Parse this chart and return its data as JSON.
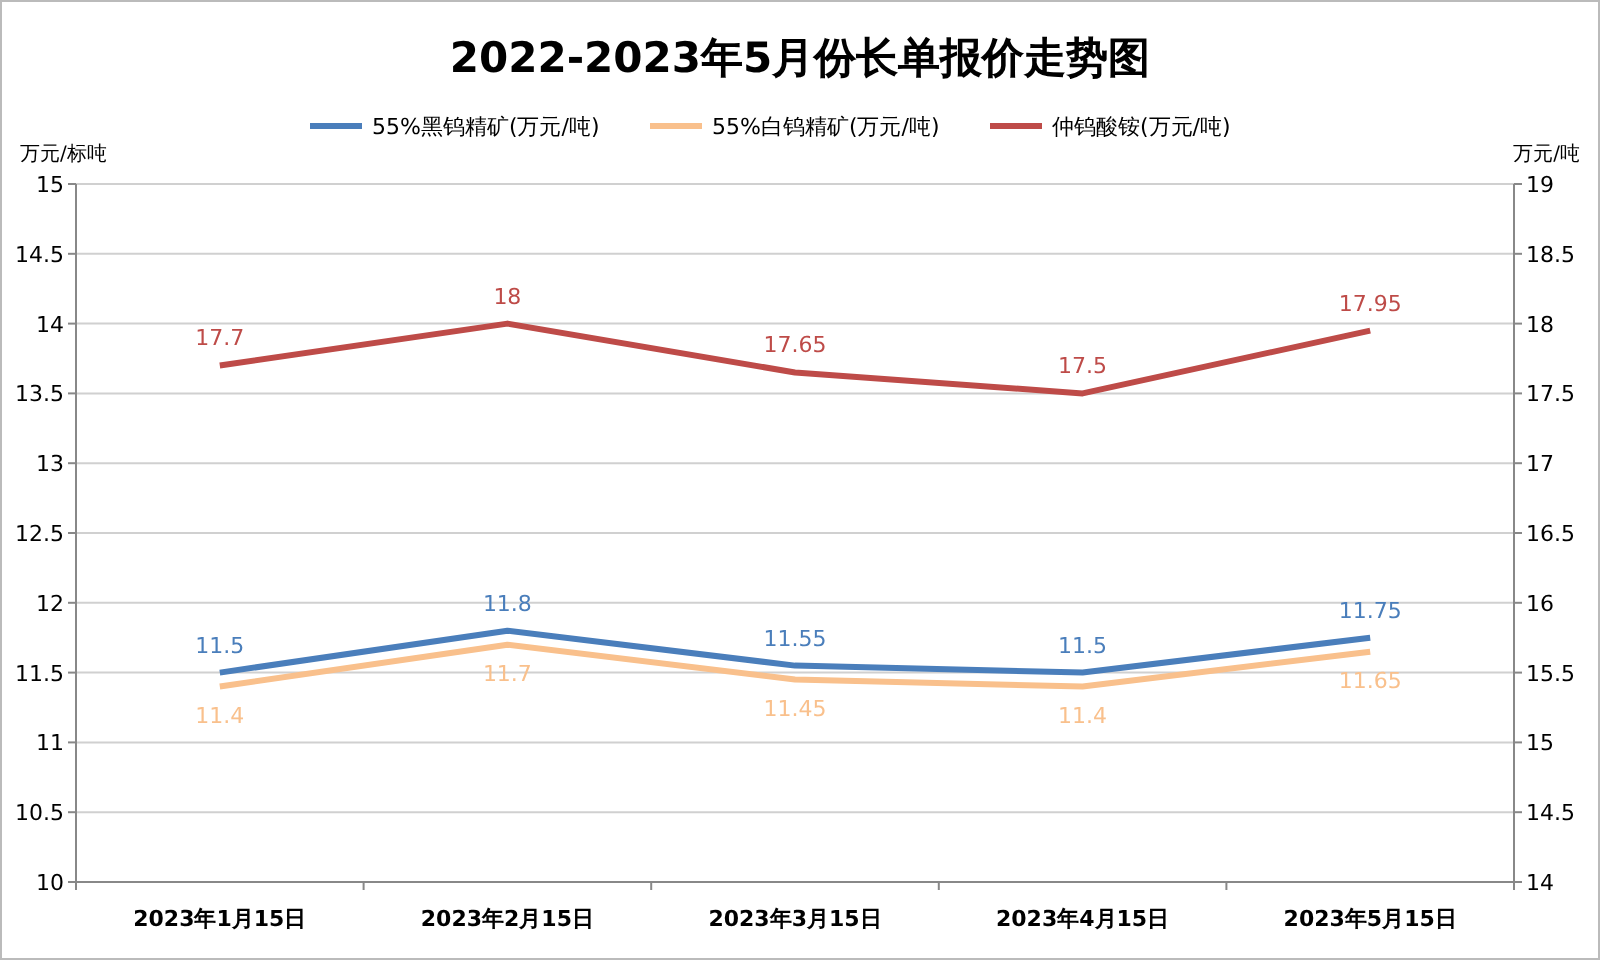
{
  "chart_data": {
    "type": "line",
    "title": "2022-2023年5月份长单报价走势图",
    "ylabel": "万元/标吨",
    "y2label": "万元/吨",
    "categories": [
      "2023年1月15日",
      "2023年2月15日",
      "2023年3月15日",
      "2023年4月15日",
      "2023年5月15日"
    ],
    "series": [
      {
        "name": "55%黑钨精矿(万元/吨)",
        "color": "#4a7ebb",
        "values": [
          11.5,
          11.8,
          11.55,
          11.5,
          11.75
        ]
      },
      {
        "name": "55%白钨精矿(万元/吨)",
        "color": "#f9c08c",
        "values": [
          11.4,
          11.7,
          11.45,
          11.4,
          11.65
        ]
      },
      {
        "name": "仲钨酸铵(万元/吨)",
        "color": "#be4b48",
        "axis": "y2",
        "values": [
          17.7,
          18,
          17.65,
          17.5,
          17.95
        ]
      }
    ],
    "ylim": [
      10,
      15
    ],
    "yticks": [
      10,
      10.5,
      11,
      11.5,
      12,
      12.5,
      13,
      13.5,
      14,
      14.5,
      15
    ],
    "y2lim": [
      14,
      19
    ],
    "y2ticks": [
      14,
      14.5,
      15,
      15.5,
      16,
      16.5,
      17,
      17.5,
      18,
      18.5,
      19
    ],
    "grid": "y",
    "legend": "top",
    "data_labels": true,
    "marker": "none",
    "line_style": "solid"
  }
}
